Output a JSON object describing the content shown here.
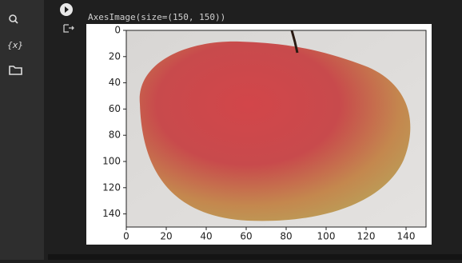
{
  "sidebar": {
    "variables_icon": "{x}"
  },
  "output": {
    "text": "AxesImage(size=(150, 150))",
    "plot": {
      "xlim": [
        0,
        150
      ],
      "ylim": [
        150,
        0
      ],
      "xticks": [
        0,
        20,
        40,
        60,
        80,
        100,
        120,
        140
      ],
      "yticks": [
        0,
        20,
        40,
        60,
        80,
        100,
        120,
        140
      ]
    }
  }
}
